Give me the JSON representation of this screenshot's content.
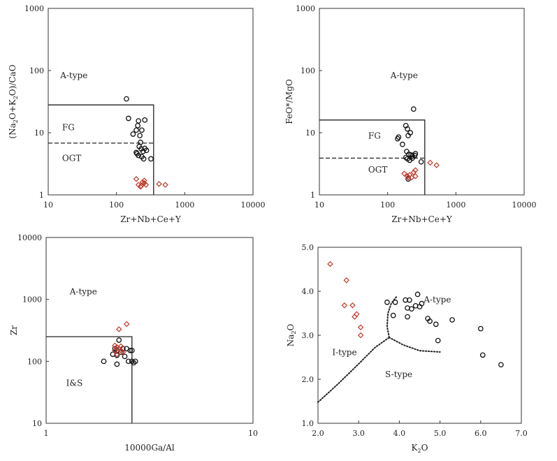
{
  "chart_data": [
    {
      "id": "p1",
      "type": "scatter",
      "xscale": "log",
      "yscale": "log",
      "xlim": [
        10,
        10000
      ],
      "ylim": [
        1,
        1000
      ],
      "xlabel": "Zr+Nb+Ce+Y",
      "ylabel_parts": [
        "(Na",
        "2",
        "O+K",
        "2",
        "O)/CaO"
      ],
      "xticks": [
        "10",
        "100",
        "1000",
        "10000"
      ],
      "yticks": [
        "1",
        "10",
        "100",
        "1000"
      ],
      "regions": [
        {
          "text": "A-type",
          "x": 15,
          "y": 75
        },
        {
          "text": "FG",
          "x": 16,
          "y": 11
        },
        {
          "text": "OGT",
          "x": 16,
          "y": 3.5
        }
      ],
      "lines": [
        {
          "style": "solid",
          "points": [
            [
              10,
              28
            ],
            [
              350,
              28
            ],
            [
              350,
              1
            ]
          ]
        },
        {
          "style": "dashed",
          "points": [
            [
              10,
              6.8
            ],
            [
              350,
              6.8
            ]
          ]
        }
      ],
      "series": [
        {
          "name": "circles",
          "marker": "circle",
          "color": "#111111",
          "points": [
            [
              140,
              35
            ],
            [
              150,
              17
            ],
            [
              175,
              9.5
            ],
            [
              195,
              11
            ],
            [
              205,
              13
            ],
            [
              210,
              15.5
            ],
            [
              220,
              9
            ],
            [
              225,
              7
            ],
            [
              215,
              6
            ],
            [
              230,
              5.5
            ],
            [
              245,
              5
            ],
            [
              260,
              16
            ],
            [
              260,
              5.6
            ],
            [
              235,
              11
            ],
            [
              200,
              4.6
            ],
            [
              210,
              4.3
            ],
            [
              235,
              4.1
            ],
            [
              250,
              3.8
            ],
            [
              320,
              3.8
            ],
            [
              195,
              4.8
            ],
            [
              275,
              5.2
            ]
          ]
        },
        {
          "name": "diamonds",
          "marker": "diamond",
          "color": "#c0392b",
          "points": [
            [
              195,
              1.8
            ],
            [
              210,
              1.45
            ],
            [
              225,
              1.35
            ],
            [
              240,
              1.6
            ],
            [
              255,
              1.55
            ],
            [
              270,
              1.45
            ],
            [
              255,
              1.7
            ],
            [
              420,
              1.5
            ],
            [
              520,
              1.45
            ],
            [
              230,
              1.4
            ]
          ]
        }
      ]
    },
    {
      "id": "p2",
      "type": "scatter",
      "xscale": "log",
      "yscale": "log",
      "xlim": [
        10,
        10000
      ],
      "ylim": [
        1,
        1000
      ],
      "xlabel": "Zr+Nb+Ce+Y",
      "ylabel_parts": [
        "FeO*/MgO"
      ],
      "xticks": [
        "10",
        "100",
        "1000",
        "10000"
      ],
      "yticks": [
        "1",
        "10",
        "100",
        "1000"
      ],
      "regions": [
        {
          "text": "A-type",
          "x": 110,
          "y": 75
        },
        {
          "text": "FG",
          "x": 52,
          "y": 8
        },
        {
          "text": "OGT",
          "x": 52,
          "y": 2.3
        }
      ],
      "lines": [
        {
          "style": "solid",
          "points": [
            [
              10,
              16
            ],
            [
              350,
              16
            ],
            [
              350,
              1
            ]
          ]
        },
        {
          "style": "dashed",
          "points": [
            [
              10,
              3.9
            ],
            [
              350,
              3.9
            ]
          ]
        }
      ],
      "series": [
        {
          "name": "circles",
          "marker": "circle",
          "color": "#111111",
          "points": [
            [
              240,
              24
            ],
            [
              185,
              13
            ],
            [
              195,
              11.5
            ],
            [
              140,
              8
            ],
            [
              145,
              8.5
            ],
            [
              200,
              9
            ],
            [
              215,
              10
            ],
            [
              165,
              6.5
            ],
            [
              190,
              5
            ],
            [
              205,
              4.5
            ],
            [
              230,
              4.2
            ],
            [
              255,
              4.6
            ],
            [
              185,
              4
            ],
            [
              195,
              3.8
            ],
            [
              210,
              3.6
            ],
            [
              230,
              3.9
            ],
            [
              250,
              4.3
            ],
            [
              310,
              3.4
            ],
            [
              220,
              4.4
            ],
            [
              200,
              1.8
            ]
          ]
        },
        {
          "name": "diamonds",
          "marker": "diamond",
          "color": "#c0392b",
          "points": [
            [
              175,
              2.2
            ],
            [
              195,
              2.0
            ],
            [
              210,
              2.1
            ],
            [
              225,
              1.9
            ],
            [
              240,
              2.3
            ],
            [
              255,
              2.0
            ],
            [
              200,
              1.9
            ],
            [
              420,
              3.3
            ],
            [
              520,
              3.0
            ],
            [
              255,
              2.5
            ]
          ]
        }
      ]
    },
    {
      "id": "p3",
      "type": "scatter",
      "xscale": "log",
      "yscale": "log",
      "xlim": [
        1,
        10
      ],
      "ylim": [
        10,
        10000
      ],
      "xlabel": "10000Ga/Al",
      "ylabel_parts": [
        "Zr"
      ],
      "xticks": [
        "1",
        "10"
      ],
      "yticks": [
        "10",
        "100",
        "1000",
        "10000"
      ],
      "regions": [
        {
          "text": "A-type",
          "x": 1.3,
          "y": 1200
        },
        {
          "text": "I&S",
          "x": 1.25,
          "y": 40
        }
      ],
      "lines": [
        {
          "style": "solid",
          "points": [
            [
              1,
              250
            ],
            [
              2.6,
              250
            ],
            [
              2.6,
              10
            ]
          ]
        }
      ],
      "series": [
        {
          "name": "circles",
          "marker": "circle",
          "color": "#111111",
          "points": [
            [
              2.25,
              220
            ],
            [
              2.15,
              160
            ],
            [
              2.2,
              150
            ],
            [
              2.35,
              160
            ],
            [
              2.45,
              160
            ],
            [
              2.55,
              150
            ],
            [
              2.1,
              130
            ],
            [
              2.2,
              125
            ],
            [
              2.3,
              140
            ],
            [
              2.4,
              120
            ],
            [
              2.6,
              150
            ],
            [
              2.5,
              100
            ],
            [
              2.6,
              100
            ],
            [
              2.65,
              95
            ],
            [
              2.7,
              100
            ],
            [
              2.2,
              90
            ],
            [
              1.9,
              100
            ]
          ]
        },
        {
          "name": "diamonds",
          "marker": "diamond",
          "color": "#c0392b",
          "points": [
            [
              2.45,
              400
            ],
            [
              2.25,
              330
            ],
            [
              2.15,
              180
            ],
            [
              2.2,
              170
            ],
            [
              2.25,
              160
            ],
            [
              2.3,
              150
            ],
            [
              2.35,
              140
            ],
            [
              2.2,
              130
            ],
            [
              2.3,
              175
            ],
            [
              2.15,
              150
            ]
          ]
        }
      ]
    },
    {
      "id": "p4",
      "type": "scatter",
      "xscale": "linear",
      "yscale": "linear",
      "xlim": [
        2.0,
        7.0
      ],
      "ylim": [
        1.0,
        5.0
      ],
      "xlabel_parts": [
        "K",
        "2",
        "O"
      ],
      "ylabel_parts": [
        "Na",
        "2",
        "O"
      ],
      "xticks": [
        "2.0",
        "3.0",
        "4.0",
        "5.0",
        "6.0",
        "7.0"
      ],
      "yticks": [
        "1.0",
        "2.0",
        "3.0",
        "4.0",
        "5.0"
      ],
      "regions": [
        {
          "text": "A-type",
          "x": 4.6,
          "y": 3.75
        },
        {
          "text": "I-type",
          "x": 2.35,
          "y": 2.55
        },
        {
          "text": "S-type",
          "x": 3.65,
          "y": 2.05
        }
      ],
      "lines": [
        {
          "style": "dotted",
          "points": [
            [
              2.0,
              1.48
            ],
            [
              2.5,
              1.9
            ],
            [
              3.0,
              2.35
            ],
            [
              3.4,
              2.72
            ],
            [
              3.75,
              2.95
            ]
          ]
        },
        {
          "style": "dotted",
          "points": [
            [
              3.75,
              2.95
            ],
            [
              3.7,
              3.2
            ],
            [
              3.72,
              3.5
            ],
            [
              3.8,
              3.72
            ],
            [
              3.95,
              3.9
            ]
          ]
        },
        {
          "style": "dotted",
          "points": [
            [
              3.75,
              2.95
            ],
            [
              4.1,
              2.78
            ],
            [
              4.5,
              2.65
            ],
            [
              5.0,
              2.62
            ]
          ]
        }
      ],
      "series": [
        {
          "name": "circles",
          "marker": "circle",
          "color": "#111111",
          "points": [
            [
              4.45,
              3.93
            ],
            [
              4.15,
              3.8
            ],
            [
              4.25,
              3.8
            ],
            [
              4.55,
              3.72
            ],
            [
              3.9,
              3.75
            ],
            [
              4.4,
              3.67
            ],
            [
              4.5,
              3.65
            ],
            [
              4.2,
              3.62
            ],
            [
              3.85,
              3.45
            ],
            [
              4.2,
              3.42
            ],
            [
              4.7,
              3.38
            ],
            [
              4.75,
              3.32
            ],
            [
              4.9,
              3.25
            ],
            [
              5.3,
              3.35
            ],
            [
              4.95,
              2.88
            ],
            [
              6.0,
              3.15
            ],
            [
              6.05,
              2.55
            ],
            [
              6.5,
              2.33
            ],
            [
              3.7,
              3.75
            ],
            [
              4.3,
              3.6
            ]
          ]
        },
        {
          "name": "diamonds",
          "marker": "diamond",
          "color": "#c0392b",
          "points": [
            [
              2.3,
              4.62
            ],
            [
              2.7,
              4.25
            ],
            [
              2.65,
              3.68
            ],
            [
              2.85,
              3.68
            ],
            [
              2.95,
              3.48
            ],
            [
              2.9,
              3.42
            ],
            [
              3.05,
              3.18
            ],
            [
              3.05,
              3.0
            ]
          ]
        }
      ]
    }
  ]
}
